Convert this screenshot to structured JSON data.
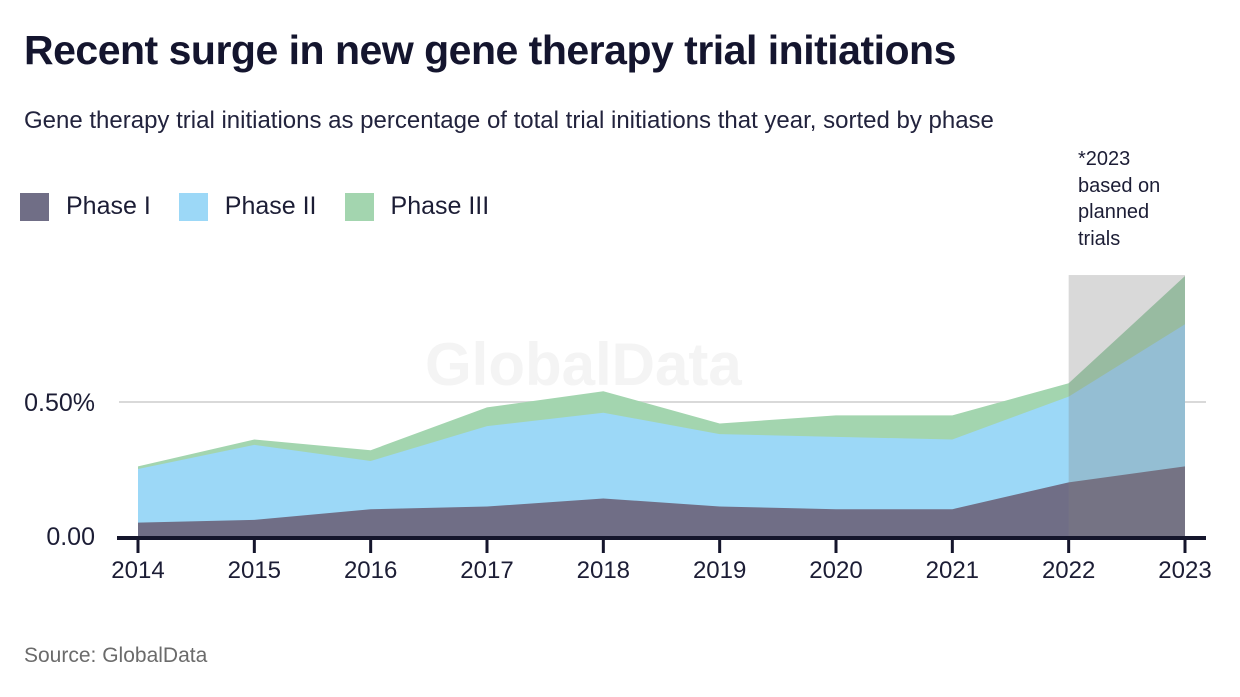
{
  "header": {
    "title": "Recent surge in new gene therapy trial initiations",
    "subtitle": "Gene therapy trial initiations as percentage of total trial initiations that year, sorted by phase"
  },
  "legend": [
    {
      "label": "Phase I"
    },
    {
      "label": "Phase II"
    },
    {
      "label": "Phase III"
    }
  ],
  "annotation": {
    "text": "*2023 based on planned trials",
    "lines": [
      "*2023",
      "based on",
      "planned",
      "trials"
    ]
  },
  "watermark": "GlobalData",
  "source": "Source: GlobalData",
  "y_axis": {
    "labels": [
      "0.50%",
      "0.00"
    ]
  },
  "chart_data": {
    "type": "area",
    "stacked": true,
    "title": "Recent surge in new gene therapy trial initiations",
    "subtitle": "Gene therapy trial initiations as percentage of total trial initiations that year, sorted by phase",
    "units": "%",
    "x": [
      2014,
      2015,
      2016,
      2017,
      2018,
      2019,
      2020,
      2021,
      2022,
      2023
    ],
    "series": [
      {
        "name": "Phase I",
        "color": "#706e86",
        "values": [
          0.05,
          0.06,
          0.1,
          0.11,
          0.14,
          0.11,
          0.1,
          0.1,
          0.2,
          0.26
        ]
      },
      {
        "name": "Phase II",
        "color": "#9cd8f7",
        "values": [
          0.2,
          0.28,
          0.18,
          0.3,
          0.32,
          0.27,
          0.27,
          0.26,
          0.32,
          0.53
        ]
      },
      {
        "name": "Phase III",
        "color": "#a3d5af",
        "values": [
          0.01,
          0.02,
          0.04,
          0.07,
          0.08,
          0.04,
          0.08,
          0.09,
          0.05,
          0.18
        ]
      }
    ],
    "totals": [
      0.26,
      0.36,
      0.32,
      0.48,
      0.54,
      0.42,
      0.45,
      0.45,
      0.57,
      0.97
    ],
    "ylim": [
      0,
      1.0
    ],
    "y_ticks": [
      {
        "value": 0.5,
        "label": "0.50%"
      },
      {
        "value": 0.0,
        "label": "0.00"
      }
    ],
    "gridline_at": 0.5,
    "grid": "horizontal-single",
    "legend_position": "top-left",
    "highlight": {
      "x_range": [
        2022,
        2023
      ],
      "note": "*2023 based on planned trials",
      "band_color_over_white": "#d9d9d9"
    },
    "colors": {
      "axis": "#15162c",
      "gridline": "#d9d9d9",
      "text": "#1c1d35",
      "watermark": "#f4f4f4"
    }
  }
}
